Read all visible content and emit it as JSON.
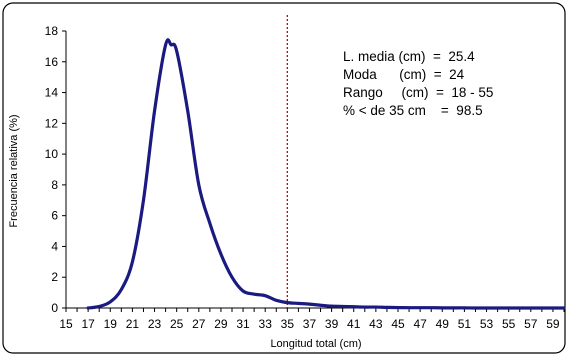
{
  "chart_data": {
    "type": "line",
    "xlabel": "Longitud total (cm)",
    "ylabel": "Frecuencia relativa (%)",
    "xlim": [
      15,
      60
    ],
    "ylim": [
      0,
      18
    ],
    "xticks": [
      "15",
      "17",
      "19",
      "21",
      "23",
      "25",
      "27",
      "29",
      "31",
      "33",
      "35",
      "37",
      "39",
      "41",
      "43",
      "45",
      "47",
      "49",
      "51",
      "53",
      "55",
      "57",
      "59"
    ],
    "yticks": [
      "0",
      "2",
      "4",
      "6",
      "8",
      "10",
      "12",
      "14",
      "16",
      "18"
    ],
    "grid": false,
    "line_color": "#1a1a80",
    "reference_line": {
      "x": 35,
      "color": "#cc0000",
      "style": "dotted"
    },
    "series": [
      {
        "x": [
          17,
          18,
          19,
          20,
          21,
          22,
          23,
          24,
          24.5,
          25,
          26,
          27,
          28,
          29,
          30,
          31,
          32,
          33,
          34,
          35,
          36,
          37,
          38,
          39,
          40,
          41,
          42,
          43,
          44,
          45,
          46,
          47,
          48,
          49,
          50,
          51,
          52,
          53,
          54,
          55,
          56,
          57,
          58,
          59,
          60
        ],
        "values": [
          0.0,
          0.1,
          0.4,
          1.2,
          3.0,
          7.0,
          12.8,
          17.1,
          17.1,
          16.7,
          12.8,
          8.0,
          5.5,
          3.5,
          2.0,
          1.1,
          0.9,
          0.8,
          0.5,
          0.35,
          0.3,
          0.25,
          0.18,
          0.12,
          0.1,
          0.08,
          0.06,
          0.06,
          0.04,
          0.03,
          0.02,
          0.02,
          0.02,
          0.01,
          0.01,
          0.01,
          0.0,
          0.0,
          0.0,
          0.0,
          0.0,
          0.0,
          0.0,
          0.0,
          0.0
        ]
      }
    ],
    "annotations": [
      "L. media (cm)  =  25.4",
      "Moda      (cm)  =  24",
      "Rango     (cm)  =  18 - 55",
      "% < de 35 cm    =  98.5"
    ]
  }
}
